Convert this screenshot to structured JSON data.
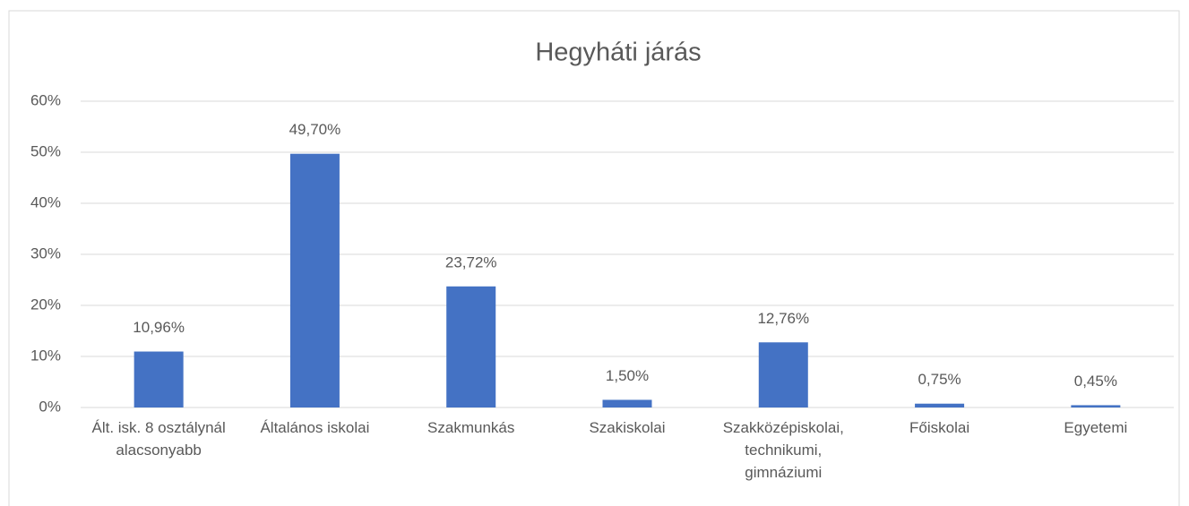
{
  "chart_data": {
    "type": "bar",
    "title": "Hegyháti járás",
    "categories": [
      "Ált. isk. 8 osztálynál alacsonyabb",
      "Általános iskolai",
      "Szakmunkás",
      "Szakiskolai",
      "Szakközépiskolai, technikumi, gimnáziumi",
      "Főiskolai",
      "Egyetemi"
    ],
    "values": [
      10.96,
      49.7,
      23.72,
      1.5,
      12.76,
      0.75,
      0.45
    ],
    "value_labels": [
      "10,96%",
      "49,70%",
      "23,72%",
      "1,50%",
      "12,76%",
      "0,75%",
      "0,45%"
    ],
    "color": "#4472c4",
    "ylim": [
      0,
      60
    ],
    "yticks": [
      {
        "value": 0,
        "label": "0%"
      },
      {
        "value": 10,
        "label": "10%"
      },
      {
        "value": 20,
        "label": "20%"
      },
      {
        "value": 30,
        "label": "30%"
      },
      {
        "value": 40,
        "label": "40%"
      },
      {
        "value": 50,
        "label": "50%"
      },
      {
        "value": 60,
        "label": "60%"
      }
    ],
    "grid": true
  }
}
